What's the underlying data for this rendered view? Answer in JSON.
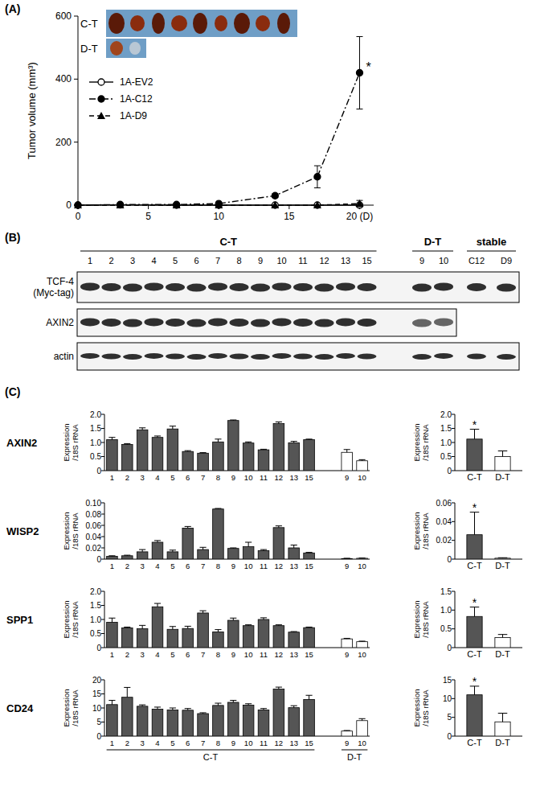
{
  "panel_labels": [
    "(A)",
    "(B)",
    "(C)"
  ],
  "blot": {
    "groups": [
      {
        "label": "C-T",
        "lanes": [
          "1",
          "2",
          "3",
          "4",
          "5",
          "6",
          "7",
          "8",
          "9",
          "10",
          "11",
          "12",
          "13",
          "15"
        ]
      },
      {
        "label": "D-T",
        "lanes": [
          "9",
          "10"
        ]
      },
      {
        "label": "stable",
        "lanes": [
          "C12",
          "D9"
        ]
      }
    ],
    "rows": [
      {
        "label": "TCF-4\n(Myc-tag)",
        "groups": [
          "C-T",
          "D-T",
          "stable"
        ]
      },
      {
        "label": "AXIN2",
        "groups": [
          "C-T",
          "D-T"
        ]
      },
      {
        "label": "actin",
        "groups": [
          "C-T",
          "D-T",
          "stable"
        ]
      }
    ]
  },
  "chart_data": [
    {
      "type": "line",
      "y_label": "Tumor volume (mm³)",
      "x": [
        0,
        3,
        7,
        10,
        14,
        17,
        20
      ],
      "xlim": [
        0,
        21
      ],
      "xticks": [
        0,
        5,
        10,
        15,
        {
          "value": 20,
          "label": "20 (D)"
        }
      ],
      "ylim": [
        0,
        600
      ],
      "yticks": [
        0,
        200,
        400,
        600
      ],
      "legend": "upper left",
      "inset_labels": [
        "C-T",
        "D-T"
      ],
      "series": [
        {
          "name": "1A-EV2",
          "color": "#000000",
          "marker": "circle-open",
          "line_style": "solid",
          "values": [
            0,
            1,
            0,
            0,
            0,
            0,
            0
          ],
          "errors": [
            0,
            0,
            0,
            0,
            0,
            0,
            5
          ]
        },
        {
          "name": "1A-C12",
          "color": "#000000",
          "marker": "circle",
          "line_style": "dashdot",
          "values": [
            0,
            2,
            2,
            5,
            30,
            90,
            420
          ],
          "errors": [
            0,
            0,
            0,
            2,
            6,
            35,
            115
          ],
          "annotation": "*"
        },
        {
          "name": "1A-D9",
          "color": "#000000",
          "marker": "triangle",
          "line_style": "dashed",
          "values": [
            0,
            0,
            0,
            0,
            0,
            0,
            5
          ],
          "errors": [
            0,
            0,
            0,
            0,
            0,
            0,
            10
          ]
        }
      ]
    },
    {
      "type": "bar",
      "title": "AXIN2",
      "y_label": "Expression\n/18S rRNA",
      "categories": [
        "1",
        "2",
        "3",
        "4",
        "5",
        "6",
        "7",
        "8",
        "9",
        "10",
        "11",
        "12",
        "13",
        "15",
        "9",
        "10"
      ],
      "category_groups": [
        "C-T",
        "C-T",
        "C-T",
        "C-T",
        "C-T",
        "C-T",
        "C-T",
        "C-T",
        "C-T",
        "C-T",
        "C-T",
        "C-T",
        "C-T",
        "C-T",
        "D-T",
        "D-T"
      ],
      "values": [
        1.1,
        0.93,
        1.45,
        1.18,
        1.48,
        0.68,
        0.62,
        1.02,
        1.78,
        0.98,
        0.74,
        1.67,
        0.99,
        1.1,
        0.65,
        0.35
      ],
      "errors": [
        0.08,
        0.03,
        0.07,
        0.05,
        0.1,
        0.03,
        0.02,
        0.1,
        0.02,
        0.04,
        0.02,
        0.06,
        0.05,
        0.02,
        0.1,
        0.04
      ],
      "colors": [
        "#555555",
        "#555555",
        "#555555",
        "#555555",
        "#555555",
        "#555555",
        "#555555",
        "#555555",
        "#555555",
        "#555555",
        "#555555",
        "#555555",
        "#555555",
        "#555555",
        "#ffffff",
        "#ffffff"
      ],
      "ylim": [
        0,
        2
      ],
      "yticks": [
        0,
        0.5,
        {
          "value": 1,
          "label": "1.0"
        },
        1.5,
        {
          "value": 2,
          "label": "2.0"
        }
      ]
    },
    {
      "type": "bar",
      "y_label": "Expression\n/18S rRNA",
      "categories": [
        "C-T",
        "D-T"
      ],
      "values": [
        1.12,
        0.5
      ],
      "errors": [
        0.35,
        0.2
      ],
      "colors": [
        "#555555",
        "#ffffff"
      ],
      "annotations": [
        "*",
        null
      ],
      "ylim": [
        0,
        2
      ],
      "yticks": [
        0,
        0.5,
        {
          "value": 1,
          "label": "1.0"
        },
        1.5,
        {
          "value": 2,
          "label": "2.0"
        }
      ]
    },
    {
      "type": "bar",
      "title": "WISP2",
      "y_label": "Expression\n/18S rRNA",
      "categories": [
        "1",
        "2",
        "3",
        "4",
        "5",
        "6",
        "7",
        "8",
        "9",
        "10",
        "11",
        "12",
        "13",
        "15",
        "9",
        "10"
      ],
      "category_groups": [
        "C-T",
        "C-T",
        "C-T",
        "C-T",
        "C-T",
        "C-T",
        "C-T",
        "C-T",
        "C-T",
        "C-T",
        "C-T",
        "C-T",
        "C-T",
        "C-T",
        "D-T",
        "D-T"
      ],
      "values": [
        0.005,
        0.006,
        0.013,
        0.03,
        0.013,
        0.055,
        0.017,
        0.089,
        0.019,
        0.022,
        0.015,
        0.056,
        0.02,
        0.011,
        0.001,
        0.0015
      ],
      "errors": [
        0.001,
        0.001,
        0.004,
        0.003,
        0.003,
        0.003,
        0.004,
        0.001,
        0.001,
        0.008,
        0.002,
        0.003,
        0.005,
        0.001,
        0.0005,
        0.0005
      ],
      "colors": [
        "#555555",
        "#555555",
        "#555555",
        "#555555",
        "#555555",
        "#555555",
        "#555555",
        "#555555",
        "#555555",
        "#555555",
        "#555555",
        "#555555",
        "#555555",
        "#555555",
        "#ffffff",
        "#ffffff"
      ],
      "ylim": [
        0,
        0.1
      ],
      "yticks": [
        0,
        0.02,
        0.04,
        0.06,
        0.08,
        {
          "value": 0.1,
          "label": "0.10"
        }
      ]
    },
    {
      "type": "bar",
      "y_label": "Expression\n/18S rRNA",
      "categories": [
        "C-T",
        "D-T"
      ],
      "values": [
        0.026,
        0.001
      ],
      "errors": [
        0.024,
        0.0005
      ],
      "colors": [
        "#555555",
        "#ffffff"
      ],
      "annotations": [
        "*",
        null
      ],
      "ylim": [
        0,
        0.06
      ],
      "yticks": [
        0,
        0.02,
        0.04,
        0.06
      ]
    },
    {
      "type": "bar",
      "title": "SPP1",
      "y_label": "Expression\n/18S rRNA",
      "categories": [
        "1",
        "2",
        "3",
        "4",
        "5",
        "6",
        "7",
        "8",
        "9",
        "10",
        "11",
        "12",
        "13",
        "15",
        "9",
        "10"
      ],
      "category_groups": [
        "C-T",
        "C-T",
        "C-T",
        "C-T",
        "C-T",
        "C-T",
        "C-T",
        "C-T",
        "C-T",
        "C-T",
        "C-T",
        "C-T",
        "C-T",
        "C-T",
        "D-T",
        "D-T"
      ],
      "values": [
        0.9,
        0.7,
        0.67,
        1.45,
        0.65,
        0.68,
        1.23,
        0.56,
        0.97,
        0.78,
        1.0,
        0.78,
        0.55,
        0.71,
        0.31,
        0.21
      ],
      "errors": [
        0.15,
        0.03,
        0.12,
        0.12,
        0.1,
        0.08,
        0.08,
        0.08,
        0.08,
        0.03,
        0.06,
        0.03,
        0.02,
        0.02,
        0.02,
        0.02
      ],
      "colors": [
        "#555555",
        "#555555",
        "#555555",
        "#555555",
        "#555555",
        "#555555",
        "#555555",
        "#555555",
        "#555555",
        "#555555",
        "#555555",
        "#555555",
        "#555555",
        "#555555",
        "#ffffff",
        "#ffffff"
      ],
      "ylim": [
        0,
        2
      ],
      "yticks": [
        0,
        0.5,
        {
          "value": 1,
          "label": "1.0"
        },
        1.5,
        {
          "value": 2,
          "label": "2.0"
        }
      ]
    },
    {
      "type": "bar",
      "y_label": "Expression\n/18S rRNA",
      "categories": [
        "C-T",
        "D-T"
      ],
      "values": [
        0.83,
        0.27
      ],
      "errors": [
        0.25,
        0.08
      ],
      "colors": [
        "#555555",
        "#ffffff"
      ],
      "annotations": [
        "*",
        null
      ],
      "ylim": [
        0,
        1.5
      ],
      "yticks": [
        0,
        0.5,
        {
          "value": 1,
          "label": "1.0"
        },
        1.5
      ]
    },
    {
      "type": "bar",
      "title": "CD24",
      "y_label": "Expression\n/18S rRNA",
      "categories": [
        "1",
        "2",
        "3",
        "4",
        "5",
        "6",
        "7",
        "8",
        "9",
        "10",
        "11",
        "12",
        "13",
        "15",
        "9",
        "10"
      ],
      "category_groups": [
        "C-T",
        "C-T",
        "C-T",
        "C-T",
        "C-T",
        "C-T",
        "C-T",
        "C-T",
        "C-T",
        "C-T",
        "C-T",
        "C-T",
        "C-T",
        "C-T",
        "D-T",
        "D-T"
      ],
      "values": [
        11.2,
        13.8,
        10.6,
        9.6,
        9.3,
        9.2,
        8.0,
        10.9,
        12.0,
        11.0,
        9.3,
        16.7,
        10.1,
        13.0,
        1.8,
        5.5
      ],
      "errors": [
        1.5,
        3.5,
        0.5,
        0.7,
        0.7,
        0.6,
        0.3,
        0.8,
        0.7,
        0.5,
        0.5,
        0.7,
        0.7,
        1.5,
        0.2,
        0.7
      ],
      "colors": [
        "#555555",
        "#555555",
        "#555555",
        "#555555",
        "#555555",
        "#555555",
        "#555555",
        "#555555",
        "#555555",
        "#555555",
        "#555555",
        "#555555",
        "#555555",
        "#555555",
        "#ffffff",
        "#ffffff"
      ],
      "ylim": [
        0,
        20
      ],
      "yticks": [
        0,
        5,
        10,
        15,
        20
      ]
    },
    {
      "type": "bar",
      "y_label": "Expression\n/18S rRNA",
      "categories": [
        "C-T",
        "D-T"
      ],
      "values": [
        11,
        3.8
      ],
      "errors": [
        2.3,
        2.3
      ],
      "colors": [
        "#555555",
        "#ffffff"
      ],
      "annotations": [
        "*",
        null
      ],
      "ylim": [
        0,
        15
      ],
      "yticks": [
        0,
        5,
        10,
        15
      ]
    }
  ]
}
